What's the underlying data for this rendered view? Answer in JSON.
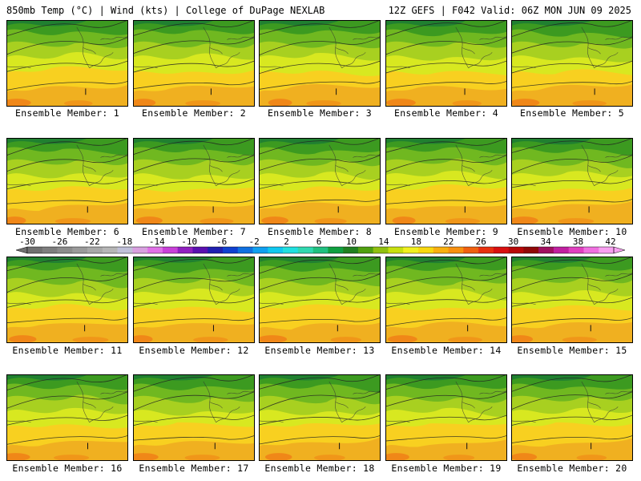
{
  "header": {
    "left": "850mb Temp (°C) | Wind (kts) | College of DuPage NEXLAB",
    "right": "12Z GEFS | F042 Valid: 06Z MON JUN 09 2025"
  },
  "panels": [
    {
      "label": "Ensemble Member: 1"
    },
    {
      "label": "Ensemble Member: 2"
    },
    {
      "label": "Ensemble Member: 3"
    },
    {
      "label": "Ensemble Member: 4"
    },
    {
      "label": "Ensemble Member: 5"
    },
    {
      "label": "Ensemble Member: 6"
    },
    {
      "label": "Ensemble Member: 7"
    },
    {
      "label": "Ensemble Member: 8"
    },
    {
      "label": "Ensemble Member: 9"
    },
    {
      "label": "Ensemble Member: 10"
    },
    {
      "label": "Ensemble Member: 11"
    },
    {
      "label": "Ensemble Member: 12"
    },
    {
      "label": "Ensemble Member: 13"
    },
    {
      "label": "Ensemble Member: 14"
    },
    {
      "label": "Ensemble Member: 15"
    },
    {
      "label": "Ensemble Member: 16"
    },
    {
      "label": "Ensemble Member: 17"
    },
    {
      "label": "Ensemble Member: 18"
    },
    {
      "label": "Ensemble Member: 19"
    },
    {
      "label": "Ensemble Member: 20"
    }
  ],
  "colorbar": {
    "tick_labels": [
      "-30",
      "-26",
      "-22",
      "-18",
      "-14",
      "-10",
      "-6",
      "-2",
      "2",
      "6",
      "10",
      "14",
      "18",
      "22",
      "26",
      "30",
      "34",
      "38",
      "42"
    ],
    "colors": [
      "#707070",
      "#7e7e7e",
      "#8c8c8c",
      "#9a9a9a",
      "#a8a8a8",
      "#b6b6b6",
      "#c0c0d8",
      "#d8a0e0",
      "#e070e8",
      "#c840d8",
      "#9020c0",
      "#5a10b0",
      "#2020b0",
      "#1040d0",
      "#1070e0",
      "#10a0f0",
      "#10c8f0",
      "#20e0e0",
      "#30d8b0",
      "#20c080",
      "#10a040",
      "#208020",
      "#50a010",
      "#90c010",
      "#c8e010",
      "#f0f020",
      "#f8d810",
      "#f8b010",
      "#f89010",
      "#f06010",
      "#e83010",
      "#d81010",
      "#b80808",
      "#900808",
      "#a01060",
      "#c020a0",
      "#e040c0",
      "#f070e0",
      "#f8a0f0"
    ]
  }
}
